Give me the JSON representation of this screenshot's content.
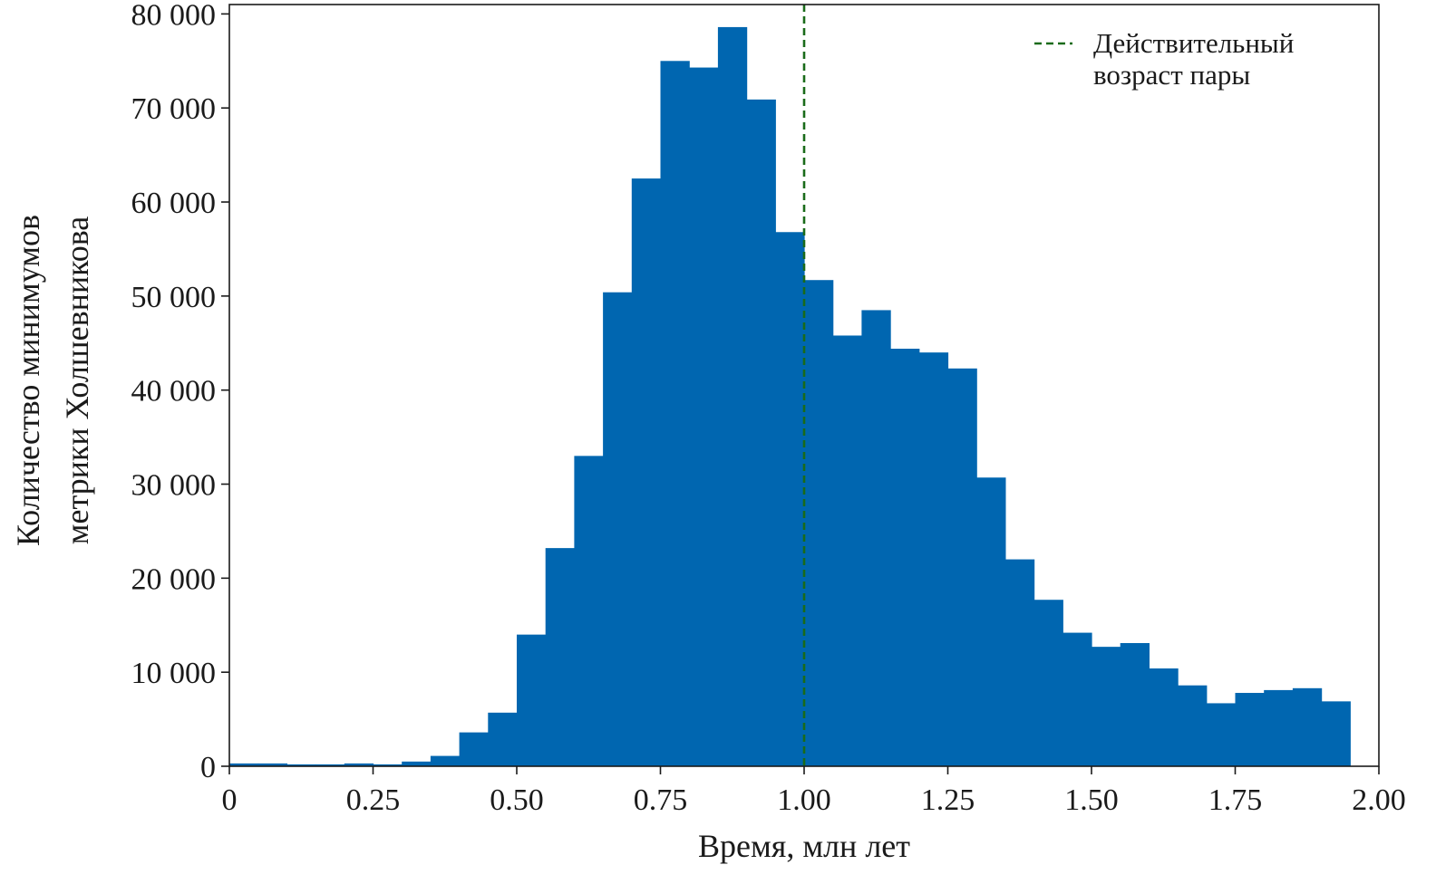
{
  "chart_data": {
    "type": "bar",
    "title": "",
    "xlabel": "Время, млн лет",
    "ylabel_lines": [
      "Количество минимумов",
      "метрики Холшевникова"
    ],
    "xlim": [
      0,
      2.0
    ],
    "ylim": [
      0,
      81000
    ],
    "grid": false,
    "legend_position": "top-right",
    "x_ticks": [
      {
        "value": 0,
        "label": "0"
      },
      {
        "value": 0.25,
        "label": "0.25"
      },
      {
        "value": 0.5,
        "label": "0.50"
      },
      {
        "value": 0.75,
        "label": "0.75"
      },
      {
        "value": 1.0,
        "label": "1.00"
      },
      {
        "value": 1.25,
        "label": "1.25"
      },
      {
        "value": 1.5,
        "label": "1.50"
      },
      {
        "value": 1.75,
        "label": "1.75"
      },
      {
        "value": 2.0,
        "label": "2.00"
      }
    ],
    "y_ticks": [
      {
        "value": 0,
        "label": "0"
      },
      {
        "value": 10000,
        "label": "10 000"
      },
      {
        "value": 20000,
        "label": "20 000"
      },
      {
        "value": 30000,
        "label": "30 000"
      },
      {
        "value": 40000,
        "label": "40 000"
      },
      {
        "value": 50000,
        "label": "50 000"
      },
      {
        "value": 60000,
        "label": "60 000"
      },
      {
        "value": 70000,
        "label": "70 000"
      },
      {
        "value": 80000,
        "label": "80 000"
      }
    ],
    "bin_width": 0.05,
    "bin_starts": [
      0.0,
      0.05,
      0.1,
      0.15,
      0.2,
      0.25,
      0.3,
      0.35,
      0.4,
      0.45,
      0.5,
      0.55,
      0.6,
      0.65,
      0.7,
      0.75,
      0.8,
      0.85,
      0.9,
      0.95,
      1.0,
      1.05,
      1.1,
      1.15,
      1.2,
      1.25,
      1.3,
      1.35,
      1.4,
      1.45,
      1.5,
      1.55,
      1.6,
      1.65,
      1.7,
      1.75,
      1.8,
      1.85,
      1.9
    ],
    "values": [
      300,
      300,
      200,
      200,
      300,
      200,
      500,
      1100,
      3600,
      5700,
      14000,
      23200,
      33000,
      50400,
      62500,
      75000,
      74300,
      78600,
      70900,
      56800,
      51700,
      45800,
      48500,
      44400,
      44000,
      42300,
      30700,
      22000,
      17700,
      14200,
      12700,
      13100,
      10400,
      8600,
      6700,
      7800,
      8100,
      8300,
      6900
    ],
    "bar_color": "#0066b0",
    "reference_line": {
      "x": 1.0,
      "label_lines": [
        "Действительный",
        "возраст пары"
      ],
      "color": "#1a6b1a",
      "style": "dashed"
    }
  }
}
